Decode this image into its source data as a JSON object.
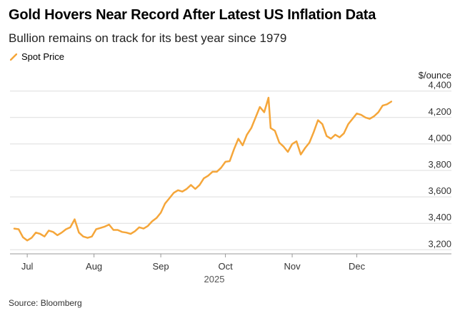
{
  "header": {
    "title": "Gold Hovers Near Record After Latest US Inflation Data",
    "subtitle": "Bullion remains on track for its best year since 1979"
  },
  "legend": {
    "label": "Spot Price"
  },
  "footer": {
    "source": "Source: Bloomberg"
  },
  "colors": {
    "series": "#f5a63a",
    "grid": "#dddddd",
    "axis_text": "#333333"
  },
  "chart_data": {
    "type": "line",
    "title": "Gold Hovers Near Record After Latest US Inflation Data",
    "subtitle": "Bullion remains on track for its best year since 1979",
    "ylabel": "$/ounce",
    "xlabel": "2025",
    "ylim": [
      3180,
      4420
    ],
    "y_ticks": [
      3200,
      3400,
      3600,
      3800,
      4000,
      4200,
      4400
    ],
    "y_tick_labels": [
      "3,200",
      "3,400",
      "3,600",
      "3,800",
      "4,000",
      "4,200",
      "4,400"
    ],
    "x_range": [
      "2025-06-23",
      "2025-12-31"
    ],
    "x_ticks": [
      "2025-07-01",
      "2025-08-01",
      "2025-09-01",
      "2025-10-01",
      "2025-11-01",
      "2025-12-01"
    ],
    "x_tick_labels": [
      "Jul",
      "Aug",
      "Sep",
      "Oct",
      "Nov",
      "Dec"
    ],
    "year_label": "2025",
    "series": [
      {
        "name": "Spot Price",
        "x": [
          "2025-06-25",
          "2025-06-27",
          "2025-06-29",
          "2025-07-01",
          "2025-07-03",
          "2025-07-05",
          "2025-07-07",
          "2025-07-09",
          "2025-07-11",
          "2025-07-13",
          "2025-07-15",
          "2025-07-17",
          "2025-07-19",
          "2025-07-21",
          "2025-07-23",
          "2025-07-25",
          "2025-07-27",
          "2025-07-29",
          "2025-07-31",
          "2025-08-02",
          "2025-08-04",
          "2025-08-06",
          "2025-08-08",
          "2025-08-10",
          "2025-08-12",
          "2025-08-14",
          "2025-08-16",
          "2025-08-18",
          "2025-08-20",
          "2025-08-22",
          "2025-08-24",
          "2025-08-26",
          "2025-08-28",
          "2025-08-30",
          "2025-09-01",
          "2025-09-03",
          "2025-09-05",
          "2025-09-07",
          "2025-09-09",
          "2025-09-11",
          "2025-09-13",
          "2025-09-15",
          "2025-09-17",
          "2025-09-19",
          "2025-09-21",
          "2025-09-23",
          "2025-09-25",
          "2025-09-27",
          "2025-09-29",
          "2025-10-01",
          "2025-10-03",
          "2025-10-05",
          "2025-10-07",
          "2025-10-09",
          "2025-10-11",
          "2025-10-13",
          "2025-10-15",
          "2025-10-17",
          "2025-10-19",
          "2025-10-21",
          "2025-10-22",
          "2025-10-24",
          "2025-10-26",
          "2025-10-28",
          "2025-10-30",
          "2025-11-01",
          "2025-11-03",
          "2025-11-05",
          "2025-11-07",
          "2025-11-09",
          "2025-11-11",
          "2025-11-13",
          "2025-11-15",
          "2025-11-17",
          "2025-11-19",
          "2025-11-21",
          "2025-11-23",
          "2025-11-25",
          "2025-11-27",
          "2025-11-29",
          "2025-12-01",
          "2025-12-03",
          "2025-12-05",
          "2025-12-07",
          "2025-12-09",
          "2025-12-11",
          "2025-12-13",
          "2025-12-15",
          "2025-12-17"
        ],
        "values": [
          3360,
          3355,
          3295,
          3270,
          3290,
          3330,
          3320,
          3300,
          3345,
          3335,
          3310,
          3330,
          3355,
          3370,
          3430,
          3330,
          3300,
          3290,
          3300,
          3355,
          3365,
          3375,
          3390,
          3350,
          3350,
          3335,
          3330,
          3320,
          3340,
          3370,
          3360,
          3380,
          3415,
          3440,
          3480,
          3550,
          3590,
          3630,
          3650,
          3640,
          3660,
          3690,
          3660,
          3690,
          3740,
          3760,
          3790,
          3790,
          3820,
          3865,
          3870,
          3960,
          4040,
          3990,
          4070,
          4120,
          4200,
          4280,
          4240,
          4350,
          4120,
          4100,
          4010,
          3980,
          3940,
          4000,
          4020,
          3920,
          3970,
          4010,
          4090,
          4180,
          4150,
          4060,
          4040,
          4070,
          4050,
          4080,
          4150,
          4190,
          4230,
          4220,
          4200,
          4190,
          4210,
          4240,
          4290,
          4300,
          4320
        ]
      }
    ]
  }
}
